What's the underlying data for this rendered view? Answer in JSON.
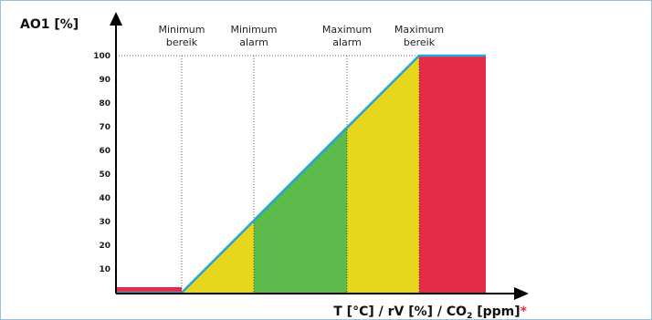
{
  "chart_data": {
    "type": "diagram",
    "y_axis": {
      "label": "AO1 [%]",
      "ticks": [
        10,
        20,
        30,
        40,
        50,
        60,
        70,
        80,
        90,
        100
      ]
    },
    "x_axis": {
      "label_prefix": "T [°C] / rV [%] / CO",
      "label_sub": "2",
      "label_unit": " [ppm]",
      "label_mark": "*"
    },
    "thresholds": [
      {
        "line1": "Minimum",
        "line2": "bereik"
      },
      {
        "line1": "Minimum",
        "line2": "alarm"
      },
      {
        "line1": "Maximum",
        "line2": "alarm"
      },
      {
        "line1": "Maximum",
        "line2": "bereik"
      }
    ],
    "regions": [
      {
        "zone": "below-minimum-range",
        "color": "#e42b48",
        "level": 2
      },
      {
        "zone": "ramp-low",
        "color": "#e7d71c"
      },
      {
        "zone": "normal",
        "color": "#5cbb4a"
      },
      {
        "zone": "ramp-high",
        "color": "#e7d71c"
      },
      {
        "zone": "above-maximum-range",
        "color": "#e42b48",
        "level": 100
      }
    ],
    "output_line_color": "#2aa4d8",
    "axis_color": "#000000"
  }
}
